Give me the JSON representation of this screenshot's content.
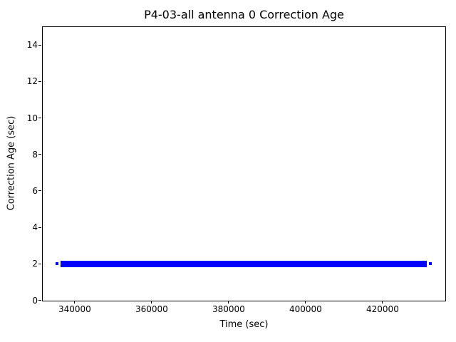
{
  "figure": {
    "background": "#ffffff",
    "axis_color": "#000000"
  },
  "chart_data": {
    "type": "line",
    "title": "P4-03-all antenna 0 Correction Age",
    "xlabel": "Time (sec)",
    "ylabel": "Correction Age (sec)",
    "xlim": [
      331600,
      436400
    ],
    "ylim": [
      0,
      15
    ],
    "xtick_values": [
      340000,
      360000,
      380000,
      400000,
      420000
    ],
    "xtick_labels": [
      "340000",
      "360000",
      "380000",
      "400000",
      "420000"
    ],
    "ytick_values": [
      0,
      2,
      4,
      6,
      8,
      10,
      12,
      14
    ],
    "ytick_labels": [
      "0",
      "2",
      "4",
      "6",
      "8",
      "10",
      "12",
      "14"
    ],
    "grid": false,
    "legend": false,
    "series": [
      {
        "name": "antenna 0 correction age",
        "color": "#0000ff",
        "y": 2,
        "x_start": 336300,
        "x_end": 431500,
        "isolated_point_xs": [
          335400,
          432400
        ]
      }
    ]
  }
}
